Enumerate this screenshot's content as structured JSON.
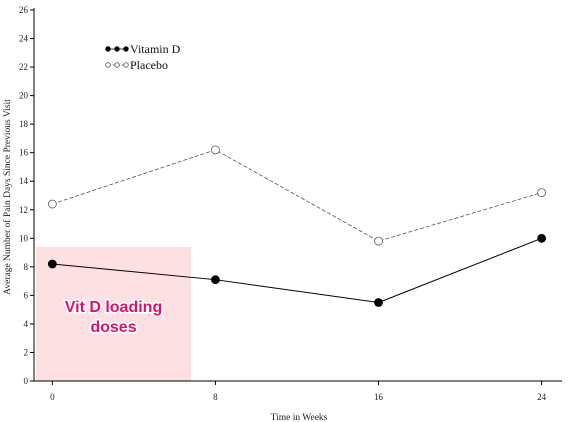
{
  "chart_data": {
    "type": "line",
    "xlabel": "Time in Weeks",
    "ylabel": "Average Number of Pain Days Since Previous Visit",
    "x": [
      0,
      8,
      16,
      24
    ],
    "x_ticks": [
      "0",
      "8",
      "16",
      "24"
    ],
    "xlim": [
      -0.9,
      25
    ],
    "ylim": [
      0,
      26
    ],
    "y_ticks": [
      "0",
      "2",
      "4",
      "6",
      "8",
      "10",
      "12",
      "14",
      "16",
      "18",
      "20",
      "22",
      "24",
      "26"
    ],
    "grid": false,
    "legend_position": "top-left",
    "series": [
      {
        "name": "Vitamin D",
        "values": [
          8.2,
          7.1,
          5.5,
          10.0
        ],
        "marker": "filled-circle",
        "line": "solid",
        "color": "#000000"
      },
      {
        "name": "Placebo",
        "values": [
          12.4,
          16.2,
          9.8,
          13.2
        ],
        "marker": "open-circle",
        "line": "dashed",
        "color": "#555555"
      }
    ],
    "annotation": {
      "lines": [
        "Vit D loading",
        "doses"
      ],
      "x_range": [
        -0.9,
        6.8
      ],
      "y_range": [
        0,
        9.4
      ],
      "fill": "#fde0e2",
      "text_color": "#e0106a"
    }
  }
}
